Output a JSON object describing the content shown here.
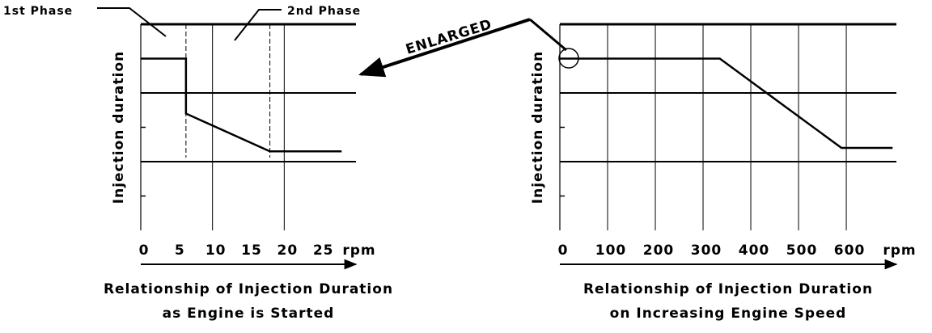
{
  "chart_data": [
    {
      "type": "line",
      "caption": [
        "Relationship of Injection Duration",
        "as Engine is Started"
      ],
      "ylabel": "Injection duration",
      "x_unit": "rpm",
      "xlim": [
        0,
        30
      ],
      "xticks": [
        0,
        5,
        10,
        15,
        20,
        25
      ],
      "xgrid": [
        10,
        20
      ],
      "phase_boundaries": [
        6.3,
        18
      ],
      "ylim": [
        0,
        6
      ],
      "yticks": [
        1,
        3,
        5
      ],
      "ygrid": [
        2,
        4
      ],
      "annotations": [
        "1st Phase",
        "2nd Phase"
      ],
      "series": [
        {
          "color": "#000000",
          "x": [
            0,
            6.3,
            6.3,
            18,
            28
          ],
          "values": [
            5,
            5,
            3.4,
            2.3,
            2.3
          ]
        }
      ]
    },
    {
      "type": "line",
      "caption": [
        "Relationship of Injection Duration",
        "on Increasing Engine Speed"
      ],
      "ylabel": "Injection duration",
      "x_unit": "rpm",
      "xlim": [
        0,
        705
      ],
      "xticks": [
        0,
        100,
        200,
        300,
        400,
        500,
        600
      ],
      "xgrid": [
        100,
        200,
        300,
        400,
        500,
        600
      ],
      "ylim": [
        0,
        6
      ],
      "yticks": [
        1,
        3,
        5
      ],
      "ygrid": [
        2,
        4
      ],
      "annotations": [
        "ENLARGED"
      ],
      "series": [
        {
          "color": "#000000",
          "x": [
            0,
            335,
            590,
            697
          ],
          "values": [
            5,
            5,
            2.4,
            2.4
          ]
        }
      ]
    }
  ]
}
